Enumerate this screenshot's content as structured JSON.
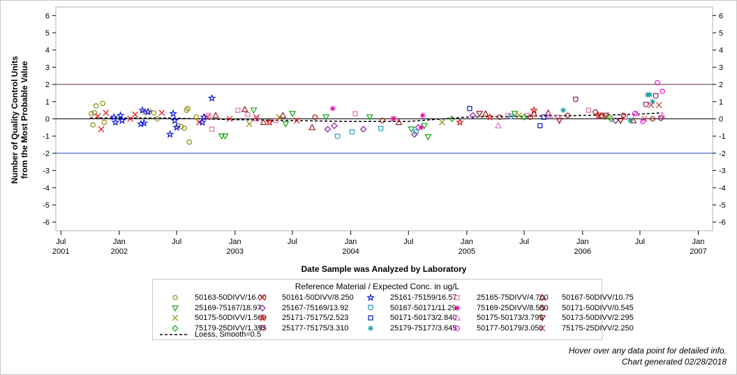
{
  "chart_data": {
    "type": "scatter",
    "xlabel": "Date Sample was Analyzed by Laboratory",
    "ylabel_lines": [
      "Number of Quality Control Units",
      "from the Most Probable Value"
    ],
    "ylim": [
      -6.5,
      6.5
    ],
    "y_ticks": [
      -6,
      -5,
      -4,
      -3,
      -2,
      -1,
      0,
      1,
      2,
      3,
      4,
      5,
      6
    ],
    "x_range": [
      "2001-06-15",
      "2007-02-15"
    ],
    "x_ticks": [
      {
        "date": "2001-07-01",
        "line1": "Jul",
        "line2": "2001"
      },
      {
        "date": "2002-01-01",
        "line1": "Jan",
        "line2": "2002"
      },
      {
        "date": "2002-07-01",
        "line1": "Jul",
        "line2": ""
      },
      {
        "date": "2003-01-01",
        "line1": "Jan",
        "line2": "2003"
      },
      {
        "date": "2003-07-01",
        "line1": "Jul",
        "line2": ""
      },
      {
        "date": "2004-01-01",
        "line1": "Jan",
        "line2": "2004"
      },
      {
        "date": "2004-07-01",
        "line1": "Jul",
        "line2": ""
      },
      {
        "date": "2005-01-01",
        "line1": "Jan",
        "line2": "2005"
      },
      {
        "date": "2005-07-01",
        "line1": "Jul",
        "line2": ""
      },
      {
        "date": "2006-01-01",
        "line1": "Jan",
        "line2": "2006"
      },
      {
        "date": "2006-07-01",
        "line1": "Jul",
        "line2": ""
      },
      {
        "date": "2007-01-01",
        "line1": "Jan",
        "line2": "2007"
      }
    ],
    "reference_lines": [
      {
        "y": 2,
        "color": "#5a2a2a"
      },
      {
        "y": 0,
        "color": "#000000"
      },
      {
        "y": -2,
        "color": "#1a3cc8"
      }
    ],
    "legend_title": "Reference Material / Expected Conc. in ug/L",
    "series": [
      {
        "name": "50163-50DIVV/16.00",
        "marker": "circle",
        "color": "#8c8c14",
        "points": [
          [
            "2001-10-05",
            0.3
          ],
          [
            "2001-10-10",
            -0.35
          ],
          [
            "2001-10-15",
            0.35
          ],
          [
            "2001-10-20",
            0.75
          ],
          [
            "2001-11-10",
            0.9
          ],
          [
            "2001-11-15",
            -0.2
          ],
          [
            "2002-03-20",
            0.4
          ],
          [
            "2002-04-05",
            0.45
          ],
          [
            "2002-04-20",
            0.35
          ],
          [
            "2002-05-01",
            0.0
          ],
          [
            "2002-07-05",
            -0.4
          ],
          [
            "2002-07-15",
            -0.45
          ],
          [
            "2002-08-01",
            0.5
          ],
          [
            "2002-08-05",
            0.6
          ],
          [
            "2002-07-25",
            -0.55
          ],
          [
            "2002-08-10",
            -1.35
          ],
          [
            "2002-09-01",
            0.1
          ]
        ]
      },
      {
        "name": "50161-50DIVV/8.250",
        "marker": "x",
        "color": "#e01010",
        "points": [
          [
            "2001-10-25",
            0.15
          ],
          [
            "2001-11-05",
            -0.6
          ],
          [
            "2001-11-20",
            0.35
          ],
          [
            "2002-02-05",
            0.0
          ],
          [
            "2002-02-20",
            0.25
          ],
          [
            "2002-05-15",
            0.35
          ],
          [
            "2002-09-10",
            -0.2
          ],
          [
            "2002-10-05",
            0.1
          ],
          [
            "2002-12-15",
            0.0
          ],
          [
            "2003-03-10",
            0.1
          ],
          [
            "2003-07-15",
            -0.1
          ]
        ]
      },
      {
        "name": "25161-75159/16.57",
        "marker": "star",
        "color": "#0a14e6",
        "points": [
          [
            "2001-12-15",
            0.1
          ],
          [
            "2001-12-20",
            -0.2
          ],
          [
            "2002-01-05",
            0.2
          ],
          [
            "2002-01-10",
            -0.1
          ],
          [
            "2002-03-10",
            -0.3
          ],
          [
            "2002-03-15",
            0.5
          ],
          [
            "2002-03-20",
            -0.25
          ],
          [
            "2002-04-01",
            0.4
          ],
          [
            "2002-06-10",
            -0.9
          ],
          [
            "2002-06-20",
            0.3
          ],
          [
            "2002-06-25",
            -0.1
          ],
          [
            "2002-07-01",
            -0.5
          ],
          [
            "2002-09-20",
            -0.2
          ],
          [
            "2002-09-25",
            0.1
          ],
          [
            "2002-10-20",
            1.2
          ]
        ]
      },
      {
        "name": "25165-75DIVV/4.700",
        "marker": "square",
        "color": "#e670a0",
        "points": [
          [
            "2002-10-10",
            0.2
          ],
          [
            "2002-10-20",
            -0.6
          ],
          [
            "2003-01-10",
            0.5
          ],
          [
            "2003-02-10",
            0.25
          ],
          [
            "2003-03-10",
            0.0
          ],
          [
            "2003-05-10",
            -0.1
          ],
          [
            "2004-01-15",
            0.3
          ],
          [
            "2004-05-15",
            0.0
          ],
          [
            "2005-05-10",
            0.2
          ],
          [
            "2005-07-10",
            0.2
          ],
          [
            "2005-10-15",
            0.1
          ],
          [
            "2006-01-20",
            0.5
          ],
          [
            "2006-05-15",
            0.1
          ]
        ]
      },
      {
        "name": "50167-50DIVV/10.75",
        "marker": "triangle",
        "color": "#9e1a1a",
        "points": [
          [
            "2002-11-01",
            0.2
          ],
          [
            "2003-02-01",
            0.55
          ],
          [
            "2003-04-01",
            -0.2
          ],
          [
            "2003-06-01",
            0.2
          ],
          [
            "2003-09-01",
            -0.5
          ],
          [
            "2004-06-01",
            -0.2
          ],
          [
            "2005-03-01",
            0.3
          ],
          [
            "2005-08-01",
            0.3
          ],
          [
            "2005-09-15",
            0.35
          ],
          [
            "2006-03-01",
            0.2
          ],
          [
            "2006-06-10",
            -0.1
          ]
        ]
      },
      {
        "name": "25169-75167/18.97",
        "marker": "tri-down",
        "color": "#14a014",
        "points": [
          [
            "2002-11-20",
            -1.0
          ],
          [
            "2002-12-01",
            -1.0
          ],
          [
            "2003-03-01",
            0.5
          ],
          [
            "2003-06-10",
            -0.3
          ],
          [
            "2003-07-01",
            0.3
          ],
          [
            "2003-10-15",
            0.1
          ],
          [
            "2004-03-01",
            0.1
          ],
          [
            "2004-07-10",
            -0.6
          ],
          [
            "2004-08-20",
            -0.4
          ],
          [
            "2004-09-01",
            -1.05
          ],
          [
            "2005-06-01",
            0.3
          ]
        ]
      },
      {
        "name": "25167-75169/13.92",
        "marker": "diamond",
        "color": "#8a1a9e",
        "points": [
          [
            "2003-10-20",
            -0.6
          ],
          [
            "2003-11-10",
            -0.4
          ],
          [
            "2004-02-10",
            -0.6
          ],
          [
            "2004-07-20",
            -0.9
          ],
          [
            "2004-08-01",
            -0.5
          ],
          [
            "2005-01-20",
            0.2
          ],
          [
            "2006-04-15",
            -0.1
          ]
        ]
      },
      {
        "name": "50167-50171/11.29",
        "marker": "shield",
        "color": "#1a9ec0",
        "points": [
          [
            "2003-11-20",
            -1.05
          ],
          [
            "2004-01-05",
            -0.8
          ],
          [
            "2004-04-05",
            -0.6
          ],
          [
            "2004-07-25",
            -0.8
          ],
          [
            "2005-05-20",
            0.1
          ]
        ]
      },
      {
        "name": "75169-25DIVV/8.550",
        "marker": "asterisk",
        "color": "#e60aa0",
        "points": [
          [
            "2003-11-05",
            0.6
          ],
          [
            "2004-05-15",
            0.0
          ],
          [
            "2004-08-10",
            -0.5
          ],
          [
            "2004-08-15",
            0.2
          ]
        ]
      },
      {
        "name": "50171-50DIVV/0.545",
        "marker": "circle",
        "color": "#8c1414",
        "points": [
          [
            "2003-09-10",
            0.1
          ],
          [
            "2004-04-10",
            -0.1
          ],
          [
            "2005-04-15",
            0.1
          ],
          [
            "2005-07-20",
            0.1
          ],
          [
            "2005-11-15",
            0.2
          ],
          [
            "2006-02-10",
            0.4
          ],
          [
            "2006-05-10",
            0.2
          ],
          [
            "2006-08-10",
            0.0
          ]
        ]
      },
      {
        "name": "50175-50DIVV/1.500",
        "marker": "x",
        "color": "#8c8c14",
        "points": [
          [
            "2003-02-15",
            -0.3
          ],
          [
            "2003-05-20",
            0.1
          ],
          [
            "2004-10-15",
            -0.2
          ],
          [
            "2005-06-15",
            0.2
          ],
          [
            "2006-03-20",
            0.1
          ]
        ]
      },
      {
        "name": "25171-75175/2.523",
        "marker": "star",
        "color": "#e01010",
        "points": [
          [
            "2003-04-20",
            -0.2
          ],
          [
            "2004-12-10",
            -0.2
          ],
          [
            "2005-03-15",
            0.1
          ],
          [
            "2005-08-01",
            0.5
          ],
          [
            "2006-02-20",
            0.2
          ]
        ]
      },
      {
        "name": "50171-50173/2.840",
        "marker": "square",
        "color": "#0a14c8",
        "points": [
          [
            "2005-01-10",
            0.6
          ],
          [
            "2005-08-20",
            -0.4
          ],
          [
            "2005-09-01",
            0.1
          ]
        ]
      },
      {
        "name": "50175-50173/3.795",
        "marker": "triangle",
        "color": "#e670c8",
        "points": [
          [
            "2005-04-10",
            -0.4
          ],
          [
            "2005-09-20",
            0.2
          ],
          [
            "2006-06-20",
            0.3
          ],
          [
            "2006-09-10",
            0.2
          ]
        ]
      },
      {
        "name": "50173-50DIVV/2.295",
        "marker": "tri-down",
        "color": "#8c1414",
        "points": [
          [
            "2005-02-10",
            0.3
          ],
          [
            "2005-10-20",
            -0.1
          ],
          [
            "2006-03-15",
            0.2
          ],
          [
            "2006-05-01",
            -0.1
          ]
        ]
      },
      {
        "name": "75179-25DIVV/1.395",
        "marker": "diamond",
        "color": "#14a014",
        "points": [
          [
            "2004-11-15",
            0.0
          ],
          [
            "2005-07-01",
            0.1
          ],
          [
            "2006-04-01",
            0.0
          ]
        ]
      },
      {
        "name": "25177-75175/3.310",
        "marker": "shield",
        "color": "#8a1a6e",
        "points": [
          [
            "2005-12-10",
            1.1
          ],
          [
            "2006-07-20",
            0.8
          ],
          [
            "2006-08-20",
            1.3
          ],
          [
            "2006-09-05",
            0.0
          ]
        ]
      },
      {
        "name": "25179-75177/3.645",
        "marker": "asterisk",
        "color": "#1a9ea0",
        "points": [
          [
            "2005-11-01",
            0.5
          ],
          [
            "2006-06-01",
            -0.1
          ],
          [
            "2006-07-25",
            1.4
          ],
          [
            "2006-08-01",
            1.4
          ],
          [
            "2006-08-10",
            1.0
          ]
        ]
      },
      {
        "name": "50177-50179/3.050",
        "marker": "circle",
        "color": "#e60ae6",
        "points": [
          [
            "2006-06-15",
            0.3
          ],
          [
            "2006-08-25",
            2.1
          ],
          [
            "2006-09-10",
            1.6
          ],
          [
            "2006-07-10",
            -0.15
          ]
        ]
      },
      {
        "name": "75175-25DIVV/2.250",
        "marker": "x",
        "color": "#c83232",
        "points": [
          [
            "2006-08-05",
            0.8
          ],
          [
            "2006-08-30",
            0.8
          ],
          [
            "2006-07-15",
            0.0
          ]
        ]
      }
    ],
    "loess": {
      "name": "Loess, Smooth=0.5",
      "color": "#000000",
      "points": [
        [
          "2001-10-01",
          0.05
        ],
        [
          "2002-06-01",
          0.05
        ],
        [
          "2003-01-01",
          -0.05
        ],
        [
          "2003-07-01",
          -0.1
        ],
        [
          "2004-01-01",
          -0.15
        ],
        [
          "2004-07-01",
          -0.15
        ],
        [
          "2005-01-01",
          0.1
        ],
        [
          "2005-07-01",
          0.15
        ],
        [
          "2006-01-01",
          0.2
        ],
        [
          "2006-06-01",
          0.25
        ],
        [
          "2006-09-10",
          0.35
        ]
      ]
    }
  },
  "footnote": {
    "line1": "Hover over any data point for detailed info.",
    "line2": "Chart generated 02/28/2018"
  }
}
